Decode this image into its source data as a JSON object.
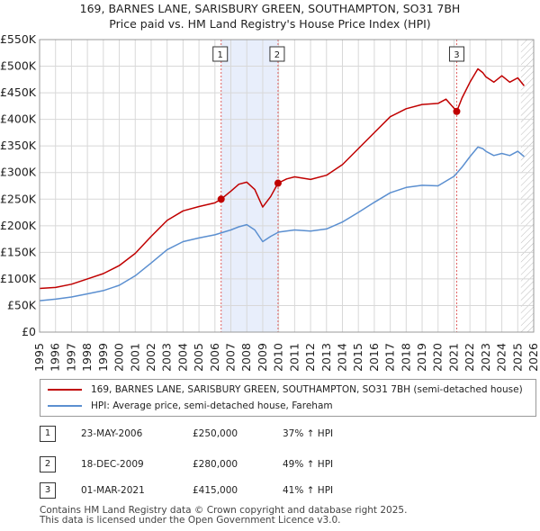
{
  "title_line1": "169, BARNES LANE, SARISBURY GREEN, SOUTHAMPTON, SO31 7BH",
  "title_line2": "Price paid vs. HM Land Registry's House Price Index (HPI)",
  "colors": {
    "price": "#c00000",
    "hpi": "#5b8fd0",
    "shade": "#e8eefb",
    "vline": "#e06060",
    "grid": "#d8d8d8"
  },
  "legend": {
    "price_label": "169, BARNES LANE, SARISBURY GREEN, SOUTHAMPTON, SO31 7BH (semi-detached house)",
    "hpi_label": "HPI: Average price, semi-detached house, Fareham"
  },
  "transactions": [
    {
      "id": "1",
      "date": "23-MAY-2006",
      "price": "£250,000",
      "hpi": "37% ↑ HPI"
    },
    {
      "id": "2",
      "date": "18-DEC-2009",
      "price": "£280,000",
      "hpi": "49% ↑ HPI"
    },
    {
      "id": "3",
      "date": "01-MAR-2021",
      "price": "£415,000",
      "hpi": "41% ↑ HPI"
    }
  ],
  "footer": {
    "line1": "Contains HM Land Registry data © Crown copyright and database right 2025.",
    "line2": "This data is licensed under the Open Government Licence v3.0."
  },
  "chart_data": {
    "type": "line",
    "xlim": [
      1995,
      2026
    ],
    "ylim": [
      0,
      550000
    ],
    "y_ticks": [
      0,
      50000,
      100000,
      150000,
      200000,
      250000,
      300000,
      350000,
      400000,
      450000,
      500000,
      550000
    ],
    "y_tick_labels": [
      "£0",
      "£50K",
      "£100K",
      "£150K",
      "£200K",
      "£250K",
      "£300K",
      "£350K",
      "£400K",
      "£450K",
      "£500K",
      "£550K"
    ],
    "x_ticks": [
      1995,
      1996,
      1997,
      1998,
      1999,
      2000,
      2001,
      2002,
      2003,
      2004,
      2005,
      2006,
      2007,
      2008,
      2009,
      2010,
      2011,
      2012,
      2013,
      2014,
      2015,
      2016,
      2017,
      2018,
      2019,
      2020,
      2021,
      2022,
      2023,
      2024,
      2025,
      2026
    ],
    "x_tick_labels": [
      "1995",
      "1996",
      "1997",
      "1998",
      "1999",
      "2000",
      "2001",
      "2002",
      "2003",
      "2004",
      "2005",
      "2006",
      "2007",
      "2008",
      "2009",
      "2010",
      "2011",
      "2012",
      "2013",
      "2014",
      "2015",
      "2016",
      "2017",
      "2018",
      "2019",
      "2020",
      "2021",
      "2022",
      "2023",
      "2024",
      "2025",
      "2026"
    ],
    "shaded_ranges": [
      [
        2006.39,
        2009.96
      ]
    ],
    "hatched_from": 2025.2,
    "sales": [
      {
        "label": "1",
        "x": 2006.39,
        "y": 250000
      },
      {
        "label": "2",
        "x": 2009.96,
        "y": 280000
      },
      {
        "label": "3",
        "x": 2021.17,
        "y": 415000
      }
    ],
    "series": [
      {
        "name": "169, BARNES LANE, SARISBURY GREEN, SOUTHAMPTON, SO31 7BH (semi-detached house)",
        "x": [
          1995,
          1996,
          1997,
          1998,
          1999,
          2000,
          2001,
          2002,
          2003,
          2004,
          2005,
          2006,
          2006.39,
          2007,
          2007.5,
          2008,
          2008.5,
          2009,
          2009.5,
          2009.96,
          2010.5,
          2011,
          2012,
          2013,
          2014,
          2015,
          2016,
          2017,
          2018,
          2019,
          2020,
          2020.5,
          2021.17,
          2021.5,
          2022,
          2022.5,
          2022.8,
          2023,
          2023.5,
          2024,
          2024.5,
          2025,
          2025.4
        ],
        "y": [
          82000,
          84000,
          90000,
          100000,
          110000,
          125000,
          148000,
          180000,
          210000,
          228000,
          236000,
          243000,
          250000,
          265000,
          278000,
          282000,
          268000,
          235000,
          255000,
          280000,
          288000,
          292000,
          287000,
          295000,
          315000,
          345000,
          375000,
          405000,
          420000,
          428000,
          430000,
          438000,
          415000,
          440000,
          470000,
          495000,
          488000,
          480000,
          470000,
          482000,
          470000,
          478000,
          463000
        ]
      },
      {
        "name": "HPI: Average price, semi-detached house, Fareham",
        "x": [
          1995,
          1996,
          1997,
          1998,
          1999,
          2000,
          2001,
          2002,
          2003,
          2004,
          2005,
          2006,
          2007,
          2007.5,
          2008,
          2008.5,
          2009,
          2009.5,
          2010,
          2011,
          2012,
          2013,
          2014,
          2015,
          2016,
          2017,
          2018,
          2019,
          2020,
          2021,
          2021.5,
          2022,
          2022.5,
          2022.8,
          2023,
          2023.5,
          2024,
          2024.5,
          2025,
          2025.4
        ],
        "y": [
          59000,
          62000,
          66000,
          72000,
          78000,
          88000,
          106000,
          130000,
          155000,
          170000,
          177000,
          183000,
          192000,
          198000,
          202000,
          192000,
          170000,
          180000,
          188000,
          192000,
          190000,
          194000,
          207000,
          225000,
          244000,
          262000,
          272000,
          276000,
          275000,
          293000,
          310000,
          330000,
          348000,
          345000,
          340000,
          332000,
          336000,
          332000,
          340000,
          330000
        ]
      }
    ]
  }
}
